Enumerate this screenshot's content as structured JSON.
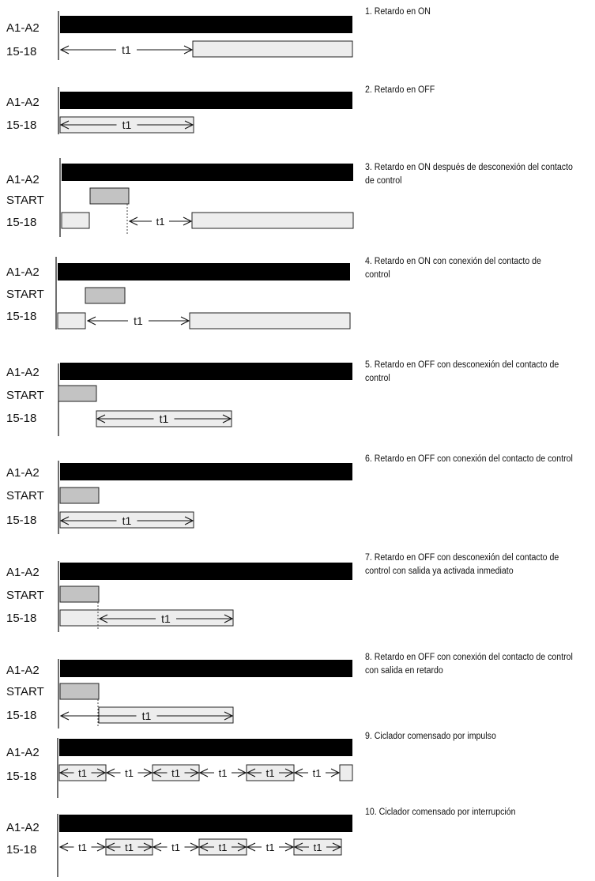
{
  "colors": {
    "supply": "#000000",
    "start": "#c3c3c3",
    "output": "#ededed",
    "outline": "#222222"
  },
  "labels": {
    "supply": "A1-A2",
    "start": "START",
    "output": "15-18",
    "time": "t1"
  },
  "diagrams": [
    {
      "id": 1,
      "caption": "1. Retardo en ON"
    },
    {
      "id": 2,
      "caption": "2. Retardo en OFF"
    },
    {
      "id": 3,
      "caption": "3. Retardo en ON después de desconexión del contacto de control"
    },
    {
      "id": 4,
      "caption": "4. Retardo en ON con conexión del contacto de control"
    },
    {
      "id": 5,
      "caption": "5. Retardo en OFF con desconexión del contacto de control"
    },
    {
      "id": 6,
      "caption": "6. Retardo en OFF con conexión del contacto de control"
    },
    {
      "id": 7,
      "caption": "7. Retardo en OFF con desconexión del contacto de control con salida ya activada inmediato"
    },
    {
      "id": 8,
      "caption": "8. Retardo en OFF con conexión del contacto de control con salida en retardo"
    },
    {
      "id": 9,
      "caption": "9. Ciclador comensado por impulso"
    },
    {
      "id": 10,
      "caption": "10. Ciclador comensado por interrupción"
    }
  ]
}
